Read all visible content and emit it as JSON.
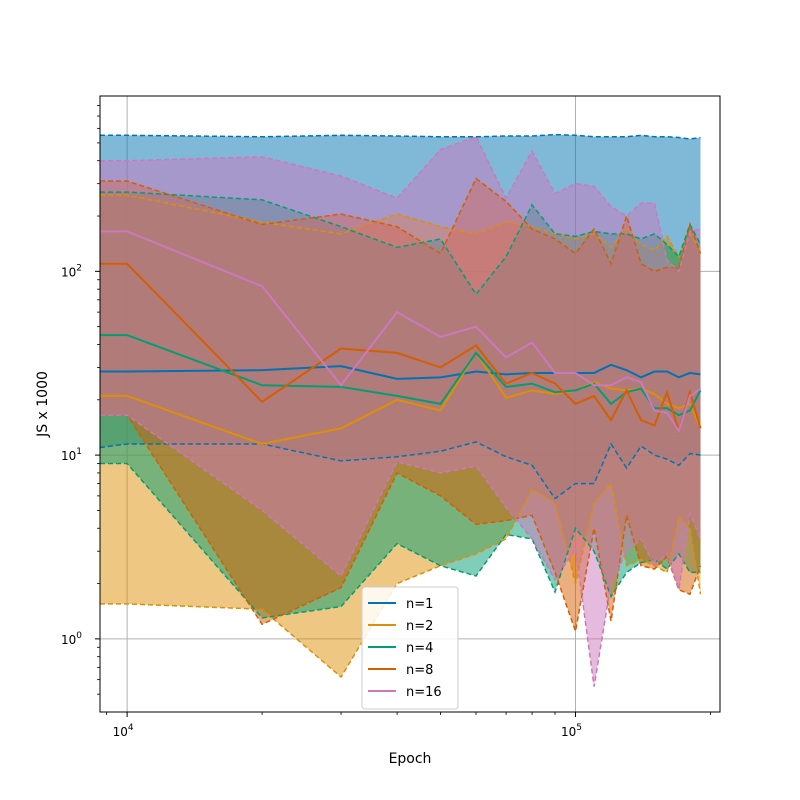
{
  "chart_data": {
    "type": "line",
    "xlabel": "Epoch",
    "ylabel": "JS x 1000",
    "xscale": "log",
    "yscale": "log",
    "xlim": [
      8700,
      210000
    ],
    "ylim": [
      0.4,
      900
    ],
    "x_ticks": [
      {
        "value": 10000,
        "base": "10",
        "exp": "4"
      },
      {
        "value": 100000,
        "base": "10",
        "exp": "5"
      }
    ],
    "y_ticks": [
      {
        "value": 1,
        "base": "10",
        "exp": "0"
      },
      {
        "value": 10,
        "base": "10",
        "exp": "1"
      },
      {
        "value": 100,
        "base": "10",
        "exp": "2"
      }
    ],
    "grid": true,
    "legend_position": "lower center",
    "x": [
      8700,
      10000,
      20000,
      30000,
      40000,
      50000,
      60000,
      70000,
      80000,
      90000,
      100000,
      110000,
      120000,
      130000,
      140000,
      150000,
      160000,
      170000,
      180000,
      190000
    ],
    "series": [
      {
        "name": "n=1",
        "color": "#0173b2",
        "mean": [
          28.5,
          28.5,
          29,
          30.5,
          26,
          26.5,
          28.5,
          27.5,
          28,
          28,
          28,
          28,
          31,
          29,
          26.5,
          28.5,
          28.5,
          26.5,
          28,
          27.5
        ],
        "lower": [
          11,
          11.5,
          11.5,
          9.3,
          9.8,
          10.5,
          11.8,
          9.8,
          8.8,
          5.8,
          7,
          7,
          11.5,
          8.5,
          11.2,
          10,
          9.5,
          8.8,
          10.2,
          10
        ],
        "upper": [
          550,
          550,
          540,
          550,
          545,
          540,
          540,
          545,
          545,
          555,
          550,
          540,
          540,
          540,
          550,
          540,
          540,
          535,
          525,
          535
        ]
      },
      {
        "name": "n=2",
        "color": "#de8f05",
        "mean": [
          21,
          21,
          11.5,
          14,
          20,
          17.5,
          36,
          20.5,
          22.5,
          21.5,
          22.5,
          25,
          23,
          22.5,
          23,
          21.5,
          19,
          18,
          19,
          14
        ],
        "lower": [
          1.55,
          1.55,
          1.45,
          0.62,
          2.0,
          2.5,
          2.9,
          3.5,
          6.5,
          5.5,
          2.0,
          5.5,
          7.0,
          2.5,
          2.7,
          2.5,
          2.3,
          4.6,
          4.0,
          1.75
        ],
        "upper": [
          260,
          260,
          185,
          160,
          205,
          175,
          160,
          185,
          175,
          160,
          150,
          160,
          135,
          170,
          140,
          130,
          155,
          120,
          160,
          130
        ]
      },
      {
        "name": "n=4",
        "color": "#029e73",
        "mean": [
          45,
          45,
          24,
          23.5,
          21,
          19,
          36,
          23.5,
          24.5,
          22,
          22.5,
          24.5,
          19,
          22,
          23,
          18,
          18,
          16.5,
          17.5,
          22.5
        ],
        "lower": [
          9,
          9,
          1.3,
          1.5,
          3.3,
          2.5,
          2.2,
          3.7,
          3.5,
          1.8,
          4.0,
          3.0,
          1.7,
          2.3,
          2.6,
          2.7,
          2.4,
          2.9,
          2.3,
          2.3
        ],
        "upper": [
          270,
          270,
          245,
          175,
          135,
          150,
          75,
          120,
          230,
          160,
          155,
          165,
          160,
          160,
          150,
          160,
          140,
          120,
          180,
          140
        ]
      },
      {
        "name": "n=8",
        "color": "#d55e00",
        "mean": [
          110,
          110,
          19.5,
          38,
          36,
          30,
          39.5,
          24.5,
          28,
          24.5,
          19,
          21,
          15.5,
          22.5,
          15.5,
          14.5,
          22,
          13.5,
          22,
          14
        ],
        "lower": [
          16.5,
          16.5,
          1.2,
          1.9,
          8.0,
          6.0,
          4.2,
          4.4,
          4.7,
          2.3,
          1.1,
          4.0,
          1.25,
          4.7,
          2.5,
          2.4,
          2.8,
          1.85,
          1.75,
          2.5
        ],
        "upper": [
          310,
          310,
          180,
          205,
          175,
          125,
          320,
          240,
          170,
          150,
          125,
          170,
          110,
          200,
          110,
          100,
          105,
          105,
          180,
          125
        ]
      },
      {
        "name": "n=16",
        "color": "#cc78bc",
        "mean": [
          165,
          165,
          83,
          24,
          60,
          44,
          50,
          34,
          41,
          28,
          28,
          24,
          24,
          26.5,
          25,
          17.5,
          17,
          13.5,
          21,
          23
        ],
        "lower": [
          16.5,
          16.5,
          5.0,
          2.2,
          9.2,
          8.0,
          8.7,
          5.2,
          3.5,
          2.1,
          3.1,
          0.55,
          2.0,
          3.0,
          3.5,
          2.5,
          2.9,
          1.85,
          4.8,
          3.5
        ],
        "upper": [
          400,
          400,
          420,
          330,
          250,
          460,
          540,
          250,
          450,
          265,
          300,
          290,
          225,
          200,
          235,
          235,
          115,
          100,
          165,
          170
        ]
      }
    ]
  }
}
